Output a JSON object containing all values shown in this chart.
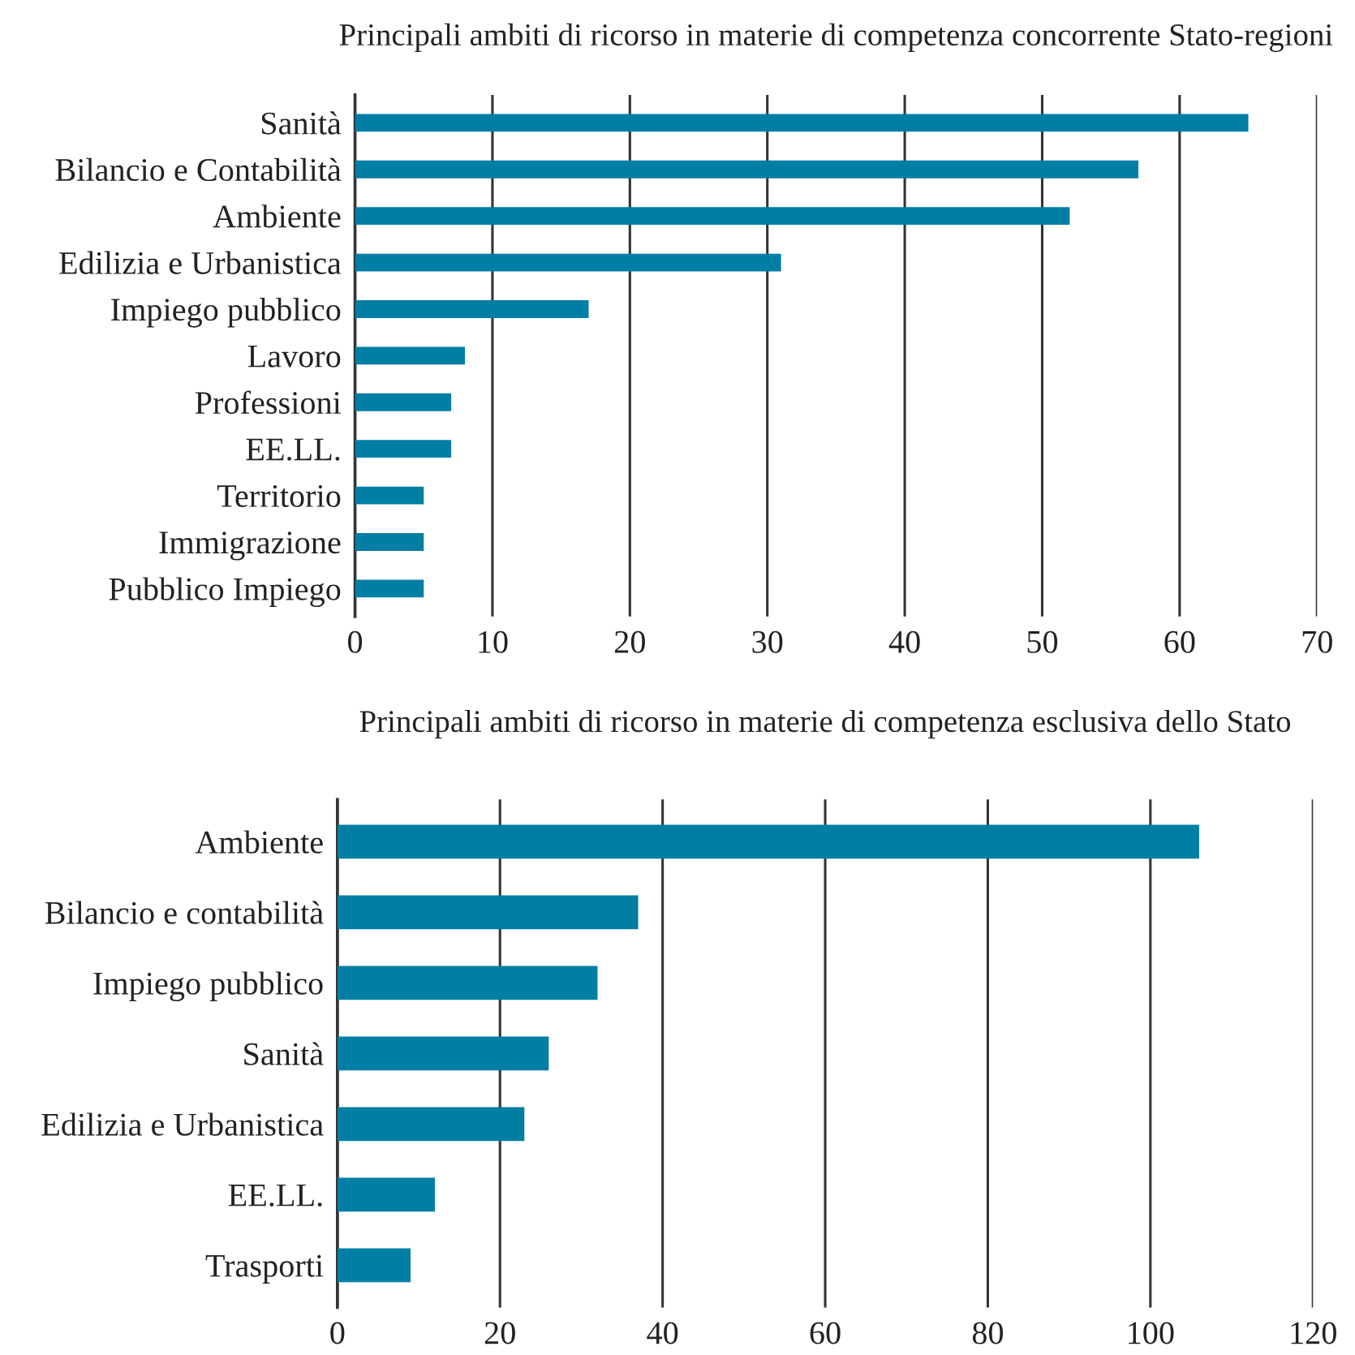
{
  "chart_data": [
    {
      "type": "bar",
      "orientation": "horizontal",
      "title": "Principali ambiti di ricorso in materie di competenza concorrente Stato-regioni",
      "categories": [
        "Sanità",
        "Bilancio e Contabilità",
        "Ambiente",
        "Edilizia e Urbanistica",
        "Impiego pubblico",
        "Lavoro",
        "Professioni",
        "EE.LL.",
        "Territorio",
        "Immigrazione",
        "Pubblico Impiego"
      ],
      "values": [
        65,
        57,
        52,
        31,
        17,
        8,
        7,
        7,
        5,
        5,
        5
      ],
      "color": "#007ea3",
      "xlim": [
        0,
        70
      ],
      "xticks": [
        0,
        10,
        20,
        30,
        40,
        50,
        60,
        70
      ],
      "grid": "x"
    },
    {
      "type": "bar",
      "orientation": "horizontal",
      "title": "Principali ambiti di ricorso in materie di competenza esclusiva dello Stato",
      "categories": [
        "Ambiente",
        "Bilancio e contabilità",
        "Impiego pubblico",
        "Sanità",
        "Edilizia e Urbanistica",
        "EE.LL.",
        "Trasporti"
      ],
      "values": [
        106,
        37,
        32,
        26,
        23,
        12,
        9
      ],
      "color": "#007ea3",
      "xlim": [
        0,
        120
      ],
      "xticks": [
        0,
        20,
        40,
        60,
        80,
        100,
        120
      ],
      "grid": "x"
    }
  ]
}
